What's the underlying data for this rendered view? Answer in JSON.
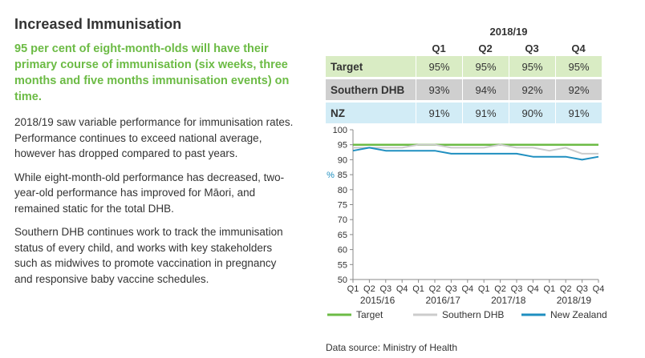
{
  "left": {
    "title": "Increased Immunisation",
    "lead": "95 per cent of eight-month-olds will have their primary course of immunisation (six weeks, three months and five months immunisation events) on time.",
    "paragraphs": [
      "2018/19 saw variable performance for immunisation rates. Performance continues to exceed national average, however has dropped compared to past years.",
      "While eight-month-old performance has decreased, two-year-old performance has improved for Māori, and remained static for the total DHB.",
      "Southern DHB continues work to track the immunisation status of every child, and works with key stakeholders such as midwives to promote vaccination in pregnancy and responsive baby vaccine schedules."
    ]
  },
  "table": {
    "year": "2018/19",
    "quarters": [
      "Q1",
      "Q2",
      "Q3",
      "Q4"
    ],
    "rows": [
      {
        "label": "Target",
        "values": [
          "95%",
          "95%",
          "95%",
          "95%"
        ]
      },
      {
        "label": "Southern DHB",
        "values": [
          "93%",
          "94%",
          "92%",
          "92%"
        ]
      },
      {
        "label": "NZ",
        "values": [
          "91%",
          "91%",
          "90%",
          "91%"
        ]
      }
    ]
  },
  "chart_data": {
    "type": "line",
    "categories": [
      "Q1",
      "Q2",
      "Q3",
      "Q4",
      "Q1",
      "Q2",
      "Q3",
      "Q4",
      "Q1",
      "Q2",
      "Q3",
      "Q4",
      "Q1",
      "Q2",
      "Q3",
      "Q4"
    ],
    "year_groups": [
      "2015/16",
      "2016/17",
      "2017/18",
      "2018/19"
    ],
    "series": [
      {
        "name": "Target",
        "color": "#6cbb45",
        "values": [
          95,
          95,
          95,
          95,
          95,
          95,
          95,
          95,
          95,
          95,
          95,
          95,
          95,
          95,
          95,
          95
        ]
      },
      {
        "name": "Southern DHB",
        "color": "#cccccc",
        "values": [
          94,
          94,
          94,
          94,
          95,
          95,
          94,
          94,
          94,
          95,
          94,
          94,
          93,
          94,
          92,
          92
        ]
      },
      {
        "name": "New Zealand",
        "color": "#1f8fc0",
        "values": [
          93,
          94,
          93,
          93,
          93,
          93,
          92,
          92,
          92,
          92,
          92,
          91,
          91,
          91,
          90,
          91
        ]
      }
    ],
    "ylabel": "%",
    "ylim": [
      50,
      100
    ],
    "yticks": [
      50,
      55,
      60,
      65,
      70,
      75,
      80,
      85,
      90,
      95,
      100
    ],
    "legend_position": "bottom"
  },
  "source": "Data source: Ministry of Health"
}
